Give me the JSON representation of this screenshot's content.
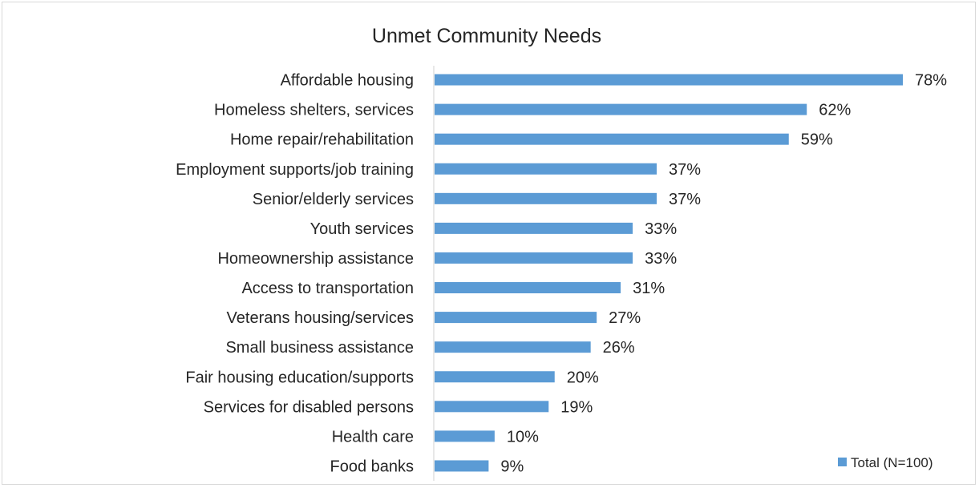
{
  "chart_data": {
    "type": "bar",
    "orientation": "horizontal",
    "title": "Unmet Community  Needs",
    "categories": [
      "Affordable housing",
      "Homeless shelters, services",
      "Home repair/rehabilitation",
      "Employment supports/job training",
      "Senior/elderly services",
      "Youth services",
      "Homeownership assistance",
      "Access to transportation",
      "Veterans housing/services",
      "Small business assistance",
      "Fair housing education/supports",
      "Services for disabled persons",
      "Health care",
      "Food banks"
    ],
    "series": [
      {
        "name": "Total (N=100)",
        "values": [
          78,
          62,
          59,
          37,
          37,
          33,
          33,
          31,
          27,
          26,
          20,
          19,
          10,
          9
        ],
        "labels": [
          "78%",
          "62%",
          "59%",
          "37%",
          "37%",
          "33%",
          "33%",
          "31%",
          "27%",
          "26%",
          "20%",
          "19%",
          "10%",
          "9%"
        ],
        "color": "#5b9bd5"
      }
    ],
    "value_unit": "%",
    "xlim": [
      0,
      80
    ],
    "grid": false,
    "legend_position": "bottom-right",
    "axis_color": "#d9d9d9"
  }
}
